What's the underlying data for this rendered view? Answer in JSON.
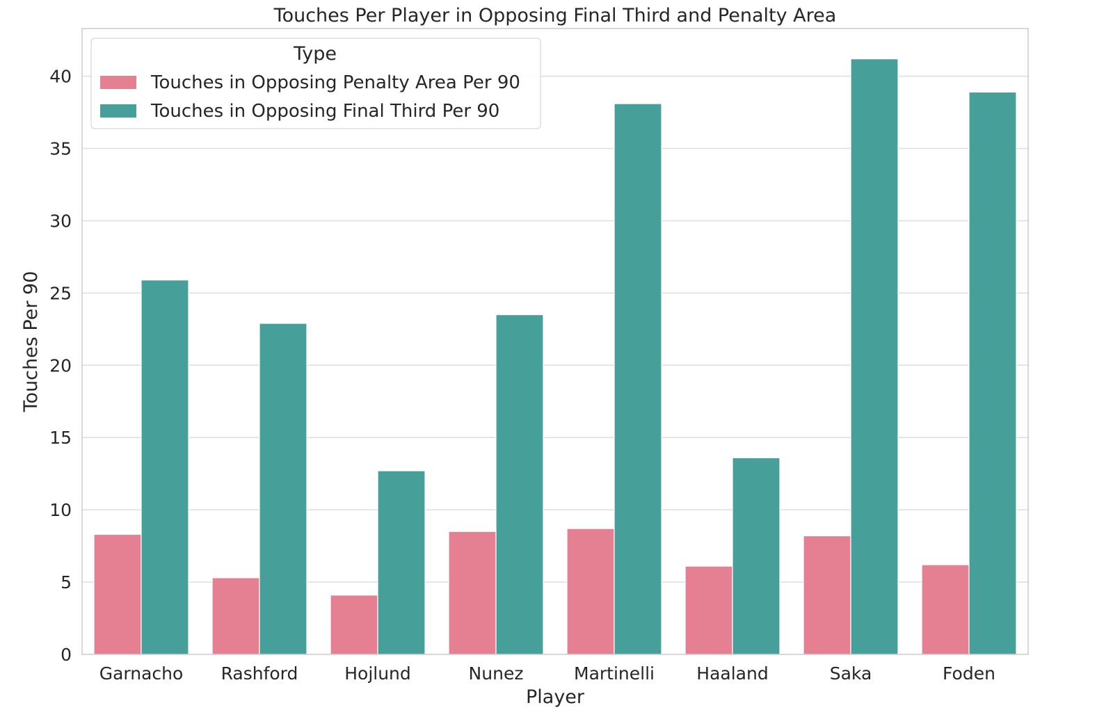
{
  "chart_data": {
    "type": "bar",
    "title": "Touches Per Player in Opposing Final Third and Penalty Area",
    "xlabel": "Player",
    "ylabel": "Touches Per 90",
    "categories": [
      "Garnacho",
      "Rashford",
      "Hojlund",
      "Nunez",
      "Martinelli",
      "Haaland",
      "Saka",
      "Foden"
    ],
    "series": [
      {
        "name": "Touches in Opposing Penalty Area Per 90",
        "color": "#e58093",
        "values": [
          8.3,
          5.3,
          4.1,
          8.5,
          8.7,
          6.1,
          8.2,
          6.2
        ]
      },
      {
        "name": "Touches in Opposing Final Third Per 90",
        "color": "#469f99",
        "values": [
          25.9,
          22.9,
          12.7,
          23.5,
          38.1,
          13.6,
          41.2,
          38.9
        ]
      }
    ],
    "ylim": [
      0,
      43.3
    ],
    "yticks": [
      0,
      5,
      10,
      15,
      20,
      25,
      30,
      35,
      40
    ],
    "grid": true,
    "legend": {
      "title": "Type",
      "position": "top-left"
    }
  }
}
